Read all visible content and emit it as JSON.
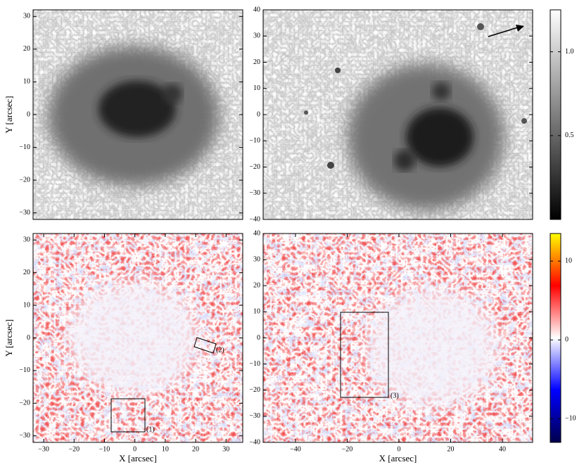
{
  "chart_data": [
    {
      "type": "image",
      "ylabel": "Y [arcsec]",
      "ylim": [
        -32,
        32
      ],
      "yticks": [
        30,
        20,
        10,
        0,
        {
          "value": -10,
          "label": "−10"
        },
        {
          "value": -20,
          "label": "−20"
        },
        {
          "value": -30,
          "label": "−30"
        }
      ]
    },
    {
      "type": "image",
      "ylim": [
        -40,
        40
      ],
      "yticks": [
        40,
        30,
        20,
        10,
        0,
        {
          "value": -10,
          "label": "−10"
        },
        {
          "value": -20,
          "label": "−20"
        },
        {
          "value": -30,
          "label": "−30"
        },
        {
          "value": -40,
          "label": "−40"
        }
      ]
    },
    {
      "type": "image",
      "xlabel": "X [arcsec]",
      "ylabel": "Y [arcsec]",
      "xlim": [
        -33.5,
        35.5
      ],
      "ylim": [
        -32,
        32
      ],
      "xticks": [
        {
          "value": -30,
          "label": "−30"
        },
        {
          "value": -20,
          "label": "−20"
        },
        {
          "value": -10,
          "label": "−10"
        },
        0,
        10,
        20,
        30
      ],
      "yticks": [
        30,
        20,
        10,
        0,
        {
          "value": -10,
          "label": "−10"
        },
        {
          "value": -20,
          "label": "−20"
        },
        {
          "value": -30,
          "label": "−30"
        }
      ],
      "annotations": [
        "(1)",
        "(2)"
      ]
    },
    {
      "type": "image",
      "xlabel": "X [arcsec]",
      "xlim": [
        -52.5,
        51.7
      ],
      "ylim": [
        -40,
        40
      ],
      "xticks": [
        {
          "value": -40,
          "label": "−40"
        },
        {
          "value": -20,
          "label": "−20"
        },
        0,
        20,
        40
      ],
      "yticks": [
        40,
        30,
        20,
        10,
        0,
        {
          "value": -10,
          "label": "−10"
        },
        {
          "value": -20,
          "label": "−20"
        },
        {
          "value": -30,
          "label": "−30"
        },
        {
          "value": -40,
          "label": "−40"
        }
      ],
      "annotations": [
        "(3)"
      ]
    },
    {
      "type": "colorbar",
      "clim": [
        0,
        1.25
      ],
      "cticks": [
        {
          "value": 1,
          "label": "1.0"
        },
        0.5
      ],
      "colors": [
        "#000000",
        "#ffffff"
      ]
    },
    {
      "type": "colorbar",
      "clim": [
        -13,
        13.5
      ],
      "cticks": [
        10,
        0,
        {
          "value": -10,
          "label": "−10"
        }
      ],
      "colors": [
        "#00004c",
        "#0000ff",
        "#ffffff",
        "#ff0000",
        "#ffff00"
      ]
    }
  ]
}
